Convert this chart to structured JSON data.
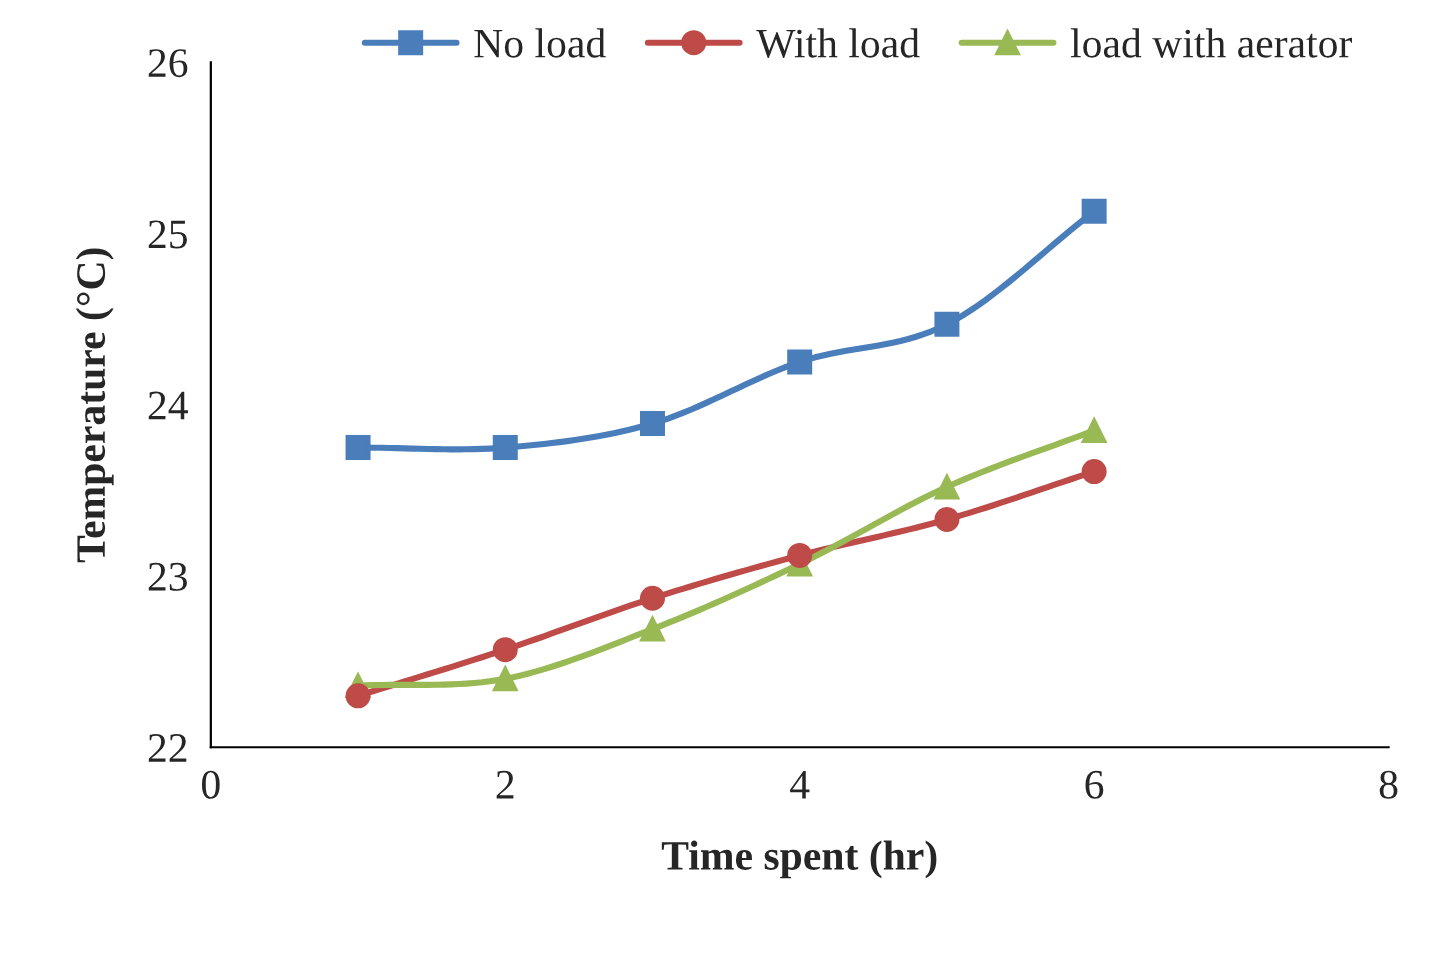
{
  "chart_data": {
    "type": "line",
    "xlabel": "Time spent (hr)",
    "ylabel": "Temperature (°C)",
    "x": [
      1,
      2,
      3,
      4,
      5,
      6
    ],
    "series": [
      {
        "name": "No load",
        "color": "#4a7ebb",
        "marker": "square",
        "values": [
          23.75,
          23.75,
          23.89,
          24.25,
          24.47,
          25.13
        ]
      },
      {
        "name": "With load",
        "color": "#be4b48",
        "marker": "circle",
        "values": [
          22.3,
          22.57,
          22.87,
          23.12,
          23.33,
          23.61
        ]
      },
      {
        "name": "load with aerator",
        "color": "#98b954",
        "marker": "triangle",
        "values": [
          22.36,
          22.4,
          22.69,
          23.07,
          23.52,
          23.85
        ]
      }
    ],
    "xlim": [
      0,
      8
    ],
    "xticks": [
      0,
      2,
      4,
      6,
      8
    ],
    "ylim": [
      22,
      26
    ],
    "yticks": [
      22,
      23,
      24,
      25,
      26
    ],
    "grid": false,
    "legend": "top",
    "line_style": "solid"
  }
}
